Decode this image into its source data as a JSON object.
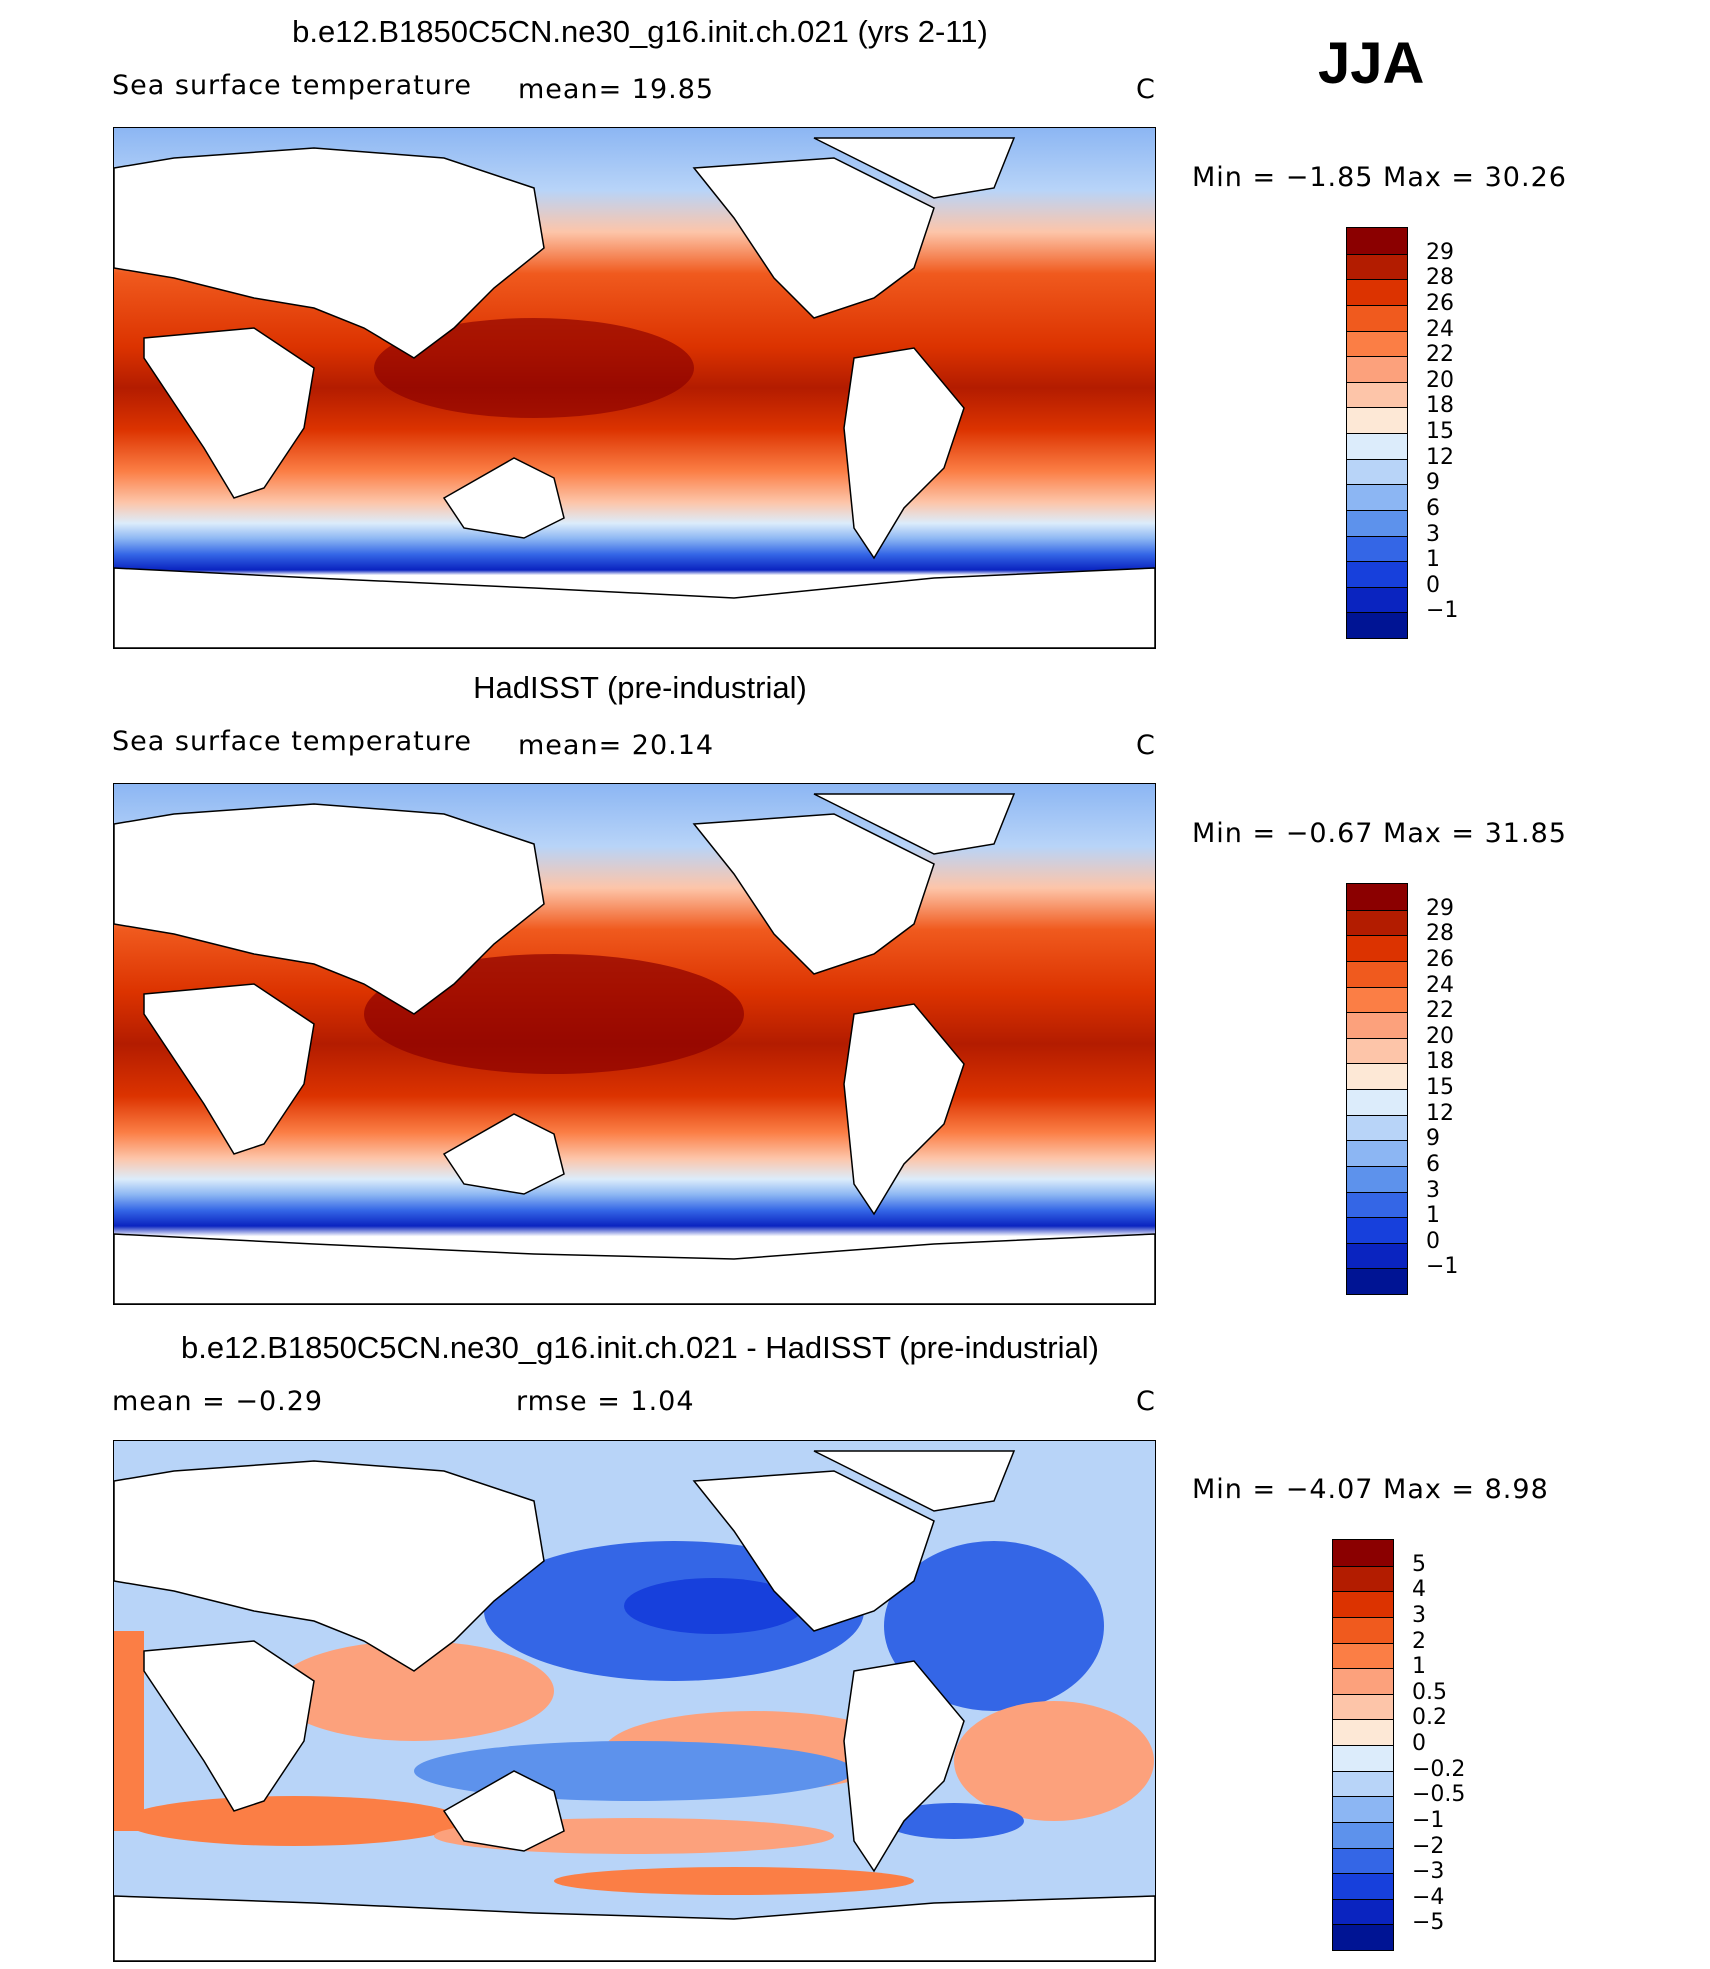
{
  "season": "JJA",
  "panels": [
    {
      "title": "b.e12.B1850C5CN.ne30_g16.init.ch.021 (yrs 2-11)",
      "left_label": "Sea surface temperature",
      "mid_label": "mean=   19.85",
      "units": "C",
      "minmax": "Min =   −1.85 Max =   30.26",
      "colorbar_labels": [
        "29",
        "28",
        "26",
        "24",
        "22",
        "20",
        "18",
        "15",
        "12",
        "9",
        "6",
        "3",
        "1",
        "0",
        "−1"
      ],
      "colors": [
        "#8b0000",
        "#b31c00",
        "#dc3300",
        "#f05a1e",
        "#fb7e45",
        "#fca17c",
        "#fdc5a9",
        "#fde8d6",
        "#dcecfb",
        "#b8d4f8",
        "#8cb6f3",
        "#5d92ec",
        "#3466e6",
        "#1740dc",
        "#0a24c0",
        "#001494"
      ]
    },
    {
      "title": "HadISST (pre-industrial)",
      "left_label": "Sea surface temperature",
      "mid_label": "mean=   20.14",
      "units": "C",
      "minmax": "Min =   −0.67 Max =   31.85",
      "colorbar_labels": [
        "29",
        "28",
        "26",
        "24",
        "22",
        "20",
        "18",
        "15",
        "12",
        "9",
        "6",
        "3",
        "1",
        "0",
        "−1"
      ],
      "colors": [
        "#8b0000",
        "#b31c00",
        "#dc3300",
        "#f05a1e",
        "#fb7e45",
        "#fca17c",
        "#fdc5a9",
        "#fde8d6",
        "#dcecfb",
        "#b8d4f8",
        "#8cb6f3",
        "#5d92ec",
        "#3466e6",
        "#1740dc",
        "#0a24c0",
        "#001494"
      ]
    },
    {
      "title": "b.e12.B1850C5CN.ne30_g16.init.ch.021 - HadISST (pre-industrial)",
      "left_label": "mean =   −0.29",
      "mid_label": "rmse =    1.04",
      "units": "C",
      "minmax": "Min =  −4.07 Max =    8.98",
      "colorbar_labels": [
        "5",
        "4",
        "3",
        "2",
        "1",
        "0.5",
        "0.2",
        "0",
        "−0.2",
        "−0.5",
        "−1",
        "−2",
        "−3",
        "−4",
        "−5"
      ],
      "colors": [
        "#8b0000",
        "#b31c00",
        "#dc3300",
        "#f05a1e",
        "#fb7e45",
        "#fca17c",
        "#fdc5a9",
        "#fde8d6",
        "#dcecfb",
        "#b8d4f8",
        "#8cb6f3",
        "#5d92ec",
        "#3466e6",
        "#1740dc",
        "#0a24c0",
        "#001494"
      ]
    }
  ]
}
